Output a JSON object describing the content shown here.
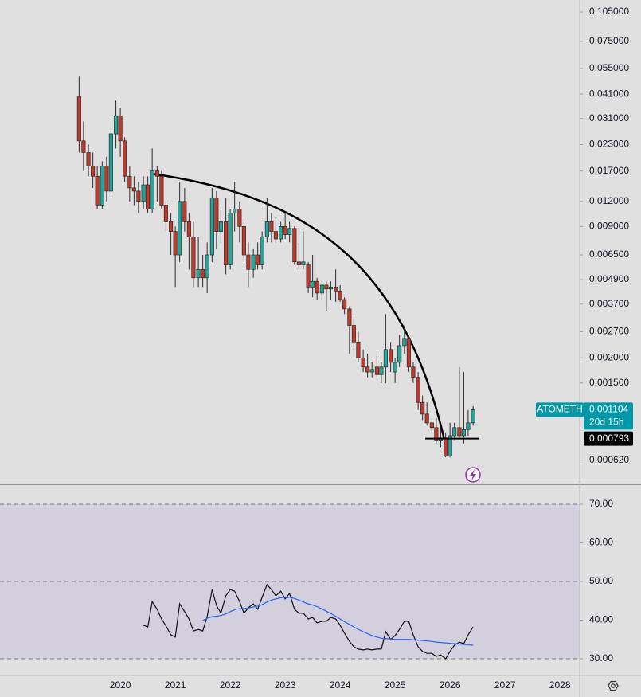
{
  "chart_data": [
    {
      "type": "candlestick",
      "symbol": "ATOMETH",
      "countdown": "20d 15h",
      "log_scale": true,
      "up_color": "#26a69a",
      "down_color": "#c0392b",
      "x": [
        2019.25,
        2019.33,
        2019.42,
        2019.5,
        2019.58,
        2019.67,
        2019.75,
        2019.83,
        2019.92,
        2020,
        2020.08,
        2020.17,
        2020.25,
        2020.33,
        2020.42,
        2020.5,
        2020.58,
        2020.67,
        2020.75,
        2020.83,
        2020.92,
        2021,
        2021.08,
        2021.17,
        2021.25,
        2021.33,
        2021.42,
        2021.5,
        2021.58,
        2021.67,
        2021.75,
        2021.83,
        2021.92,
        2022,
        2022.08,
        2022.17,
        2022.25,
        2022.33,
        2022.42,
        2022.5,
        2022.58,
        2022.67,
        2022.75,
        2022.83,
        2022.92,
        2023,
        2023.08,
        2023.17,
        2023.25,
        2023.33,
        2023.42,
        2023.5,
        2023.58,
        2023.67,
        2023.75,
        2023.83,
        2023.92,
        2024,
        2024.08,
        2024.17,
        2024.25,
        2024.33,
        2024.42,
        2024.5,
        2024.58,
        2024.67,
        2024.75,
        2024.83,
        2024.92,
        2025,
        2025.08,
        2025.17,
        2025.25,
        2025.33,
        2025.42,
        2025.5,
        2025.58,
        2025.67,
        2025.75,
        2025.83,
        2025.92,
        2026,
        2026.08,
        2026.17,
        2026.25,
        2026.33,
        2026.42
      ],
      "open": [
        0.04,
        0.024,
        0.021,
        0.018,
        0.016,
        0.0115,
        0.018,
        0.0135,
        0.026,
        0.032,
        0.024,
        0.016,
        0.014,
        0.0135,
        0.012,
        0.0145,
        0.011,
        0.017,
        0.016,
        0.0115,
        0.0095,
        0.0085,
        0.0065,
        0.012,
        0.0095,
        0.008,
        0.005,
        0.0055,
        0.005,
        0.0065,
        0.0125,
        0.0085,
        0.0095,
        0.0058,
        0.0105,
        0.011,
        0.009,
        0.0065,
        0.0055,
        0.0065,
        0.0058,
        0.008,
        0.0095,
        0.0085,
        0.0078,
        0.009,
        0.0082,
        0.0088,
        0.006,
        0.0058,
        0.0058,
        0.0045,
        0.0048,
        0.0042,
        0.0046,
        0.0044,
        0.0045,
        0.0043,
        0.0039,
        0.0035,
        0.0029,
        0.0024,
        0.002,
        0.0018,
        0.0017,
        0.0018,
        0.00165,
        0.0018,
        0.0022,
        0.0017,
        0.0019,
        0.0023,
        0.0025,
        0.0018,
        0.0016,
        0.0012,
        0.00105,
        0.00095,
        0.0009,
        0.00078,
        0.0008,
        0.00065,
        0.00082,
        0.0009,
        0.00082,
        0.00088,
        0.00095
      ],
      "high": [
        0.05,
        0.03,
        0.023,
        0.021,
        0.018,
        0.019,
        0.02,
        0.027,
        0.038,
        0.035,
        0.025,
        0.018,
        0.016,
        0.015,
        0.016,
        0.016,
        0.022,
        0.018,
        0.017,
        0.012,
        0.0105,
        0.009,
        0.015,
        0.014,
        0.0105,
        0.0095,
        0.008,
        0.0065,
        0.0075,
        0.014,
        0.0135,
        0.011,
        0.0125,
        0.011,
        0.015,
        0.012,
        0.0095,
        0.0075,
        0.007,
        0.0075,
        0.0085,
        0.0125,
        0.0105,
        0.01,
        0.0095,
        0.0105,
        0.0095,
        0.009,
        0.0075,
        0.0085,
        0.006,
        0.0065,
        0.005,
        0.0048,
        0.0048,
        0.0048,
        0.0055,
        0.0046,
        0.004,
        0.0036,
        0.0032,
        0.0027,
        0.0022,
        0.0021,
        0.0019,
        0.0021,
        0.0019,
        0.0033,
        0.0024,
        0.002,
        0.0026,
        0.0029,
        0.0026,
        0.0019,
        0.0017,
        0.0013,
        0.0012,
        0.001,
        0.001,
        0.0009,
        0.00085,
        0.00095,
        0.00095,
        0.0018,
        0.0017,
        0.0011,
        0.00115
      ],
      "low": [
        0.021,
        0.017,
        0.016,
        0.014,
        0.011,
        0.011,
        0.012,
        0.013,
        0.022,
        0.02,
        0.015,
        0.012,
        0.0115,
        0.0105,
        0.011,
        0.0105,
        0.0105,
        0.012,
        0.011,
        0.0085,
        0.0065,
        0.0045,
        0.006,
        0.0085,
        0.0055,
        0.0045,
        0.0045,
        0.0045,
        0.0042,
        0.006,
        0.007,
        0.0075,
        0.0052,
        0.0055,
        0.0085,
        0.0075,
        0.006,
        0.0045,
        0.005,
        0.0055,
        0.0055,
        0.0075,
        0.0075,
        0.0075,
        0.0075,
        0.0078,
        0.0075,
        0.0058,
        0.0055,
        0.0055,
        0.0042,
        0.004,
        0.0039,
        0.0039,
        0.0034,
        0.0039,
        0.0038,
        0.0038,
        0.0033,
        0.0021,
        0.0022,
        0.0019,
        0.0017,
        0.0016,
        0.0016,
        0.0016,
        0.0015,
        0.0015,
        0.0017,
        0.0015,
        0.0018,
        0.0021,
        0.0017,
        0.0015,
        0.0011,
        0.00098,
        0.00092,
        0.00085,
        0.00075,
        0.00072,
        0.00064,
        0.00064,
        0.00078,
        0.0008,
        0.00075,
        0.00082,
        0.00092
      ],
      "close": [
        0.024,
        0.021,
        0.018,
        0.016,
        0.0115,
        0.018,
        0.0135,
        0.026,
        0.032,
        0.024,
        0.016,
        0.014,
        0.0135,
        0.012,
        0.0145,
        0.011,
        0.017,
        0.016,
        0.0115,
        0.0095,
        0.0085,
        0.0065,
        0.012,
        0.0095,
        0.008,
        0.005,
        0.0055,
        0.005,
        0.0065,
        0.0125,
        0.0085,
        0.0095,
        0.0058,
        0.0105,
        0.011,
        0.009,
        0.0065,
        0.0055,
        0.0065,
        0.0058,
        0.008,
        0.0095,
        0.0085,
        0.0078,
        0.009,
        0.0082,
        0.0088,
        0.006,
        0.0058,
        0.006,
        0.0045,
        0.0048,
        0.0042,
        0.0046,
        0.0044,
        0.0045,
        0.0043,
        0.0039,
        0.0035,
        0.0029,
        0.0024,
        0.002,
        0.0018,
        0.0017,
        0.00175,
        0.00165,
        0.0018,
        0.0022,
        0.0019,
        0.0019,
        0.0023,
        0.0025,
        0.0018,
        0.0016,
        0.0012,
        0.00105,
        0.00095,
        0.0009,
        0.00078,
        0.0008,
        0.00065,
        0.00082,
        0.0009,
        0.00082,
        0.00088,
        0.00095,
        0.001104
      ],
      "hline": 0.000793,
      "xlim": [
        2017.81,
        2028.36
      ],
      "xticks": [
        2020,
        2021,
        2022,
        2023,
        2024,
        2025,
        2026,
        2027,
        2028
      ],
      "ylim": [
        0.00047,
        0.1204
      ],
      "yticks": [
        {
          "value": 0.105,
          "label": "0.105000"
        },
        {
          "value": 0.075,
          "label": "0.075000"
        },
        {
          "value": 0.055,
          "label": "0.055000"
        },
        {
          "value": 0.041,
          "label": "0.041000"
        },
        {
          "value": 0.031,
          "label": "0.031000"
        },
        {
          "value": 0.023,
          "label": "0.023000"
        },
        {
          "value": 0.017,
          "label": "0.017000"
        },
        {
          "value": 0.012,
          "label": "0.012000"
        },
        {
          "value": 0.009,
          "label": "0.009000"
        },
        {
          "value": 0.0065,
          "label": "0.006500"
        },
        {
          "value": 0.0049,
          "label": "0.004900"
        },
        {
          "value": 0.0037,
          "label": "0.003700"
        },
        {
          "value": 0.0027,
          "label": "0.002700"
        },
        {
          "value": 0.002,
          "label": "0.002000"
        },
        {
          "value": 0.0015,
          "label": "0.001500"
        },
        {
          "value": 0.00062,
          "label": "0.000620"
        }
      ]
    },
    {
      "type": "line",
      "ylim": [
        25.67,
        75.15
      ],
      "yticks": [
        {
          "value": 70,
          "label": "70.00"
        },
        {
          "value": 60,
          "label": "60.00"
        },
        {
          "value": 50,
          "label": "50.00"
        },
        {
          "value": 40,
          "label": "40.00"
        },
        {
          "value": 30,
          "label": "30.00"
        }
      ],
      "levels": [
        70,
        50,
        30
      ],
      "band_color": "#d3cfdc",
      "series": [
        {
          "color": "#111111",
          "values": [
            null,
            null,
            null,
            null,
            null,
            null,
            null,
            null,
            null,
            null,
            null,
            null,
            null,
            null,
            38.7,
            38.2,
            44.8,
            42.8,
            40.3,
            38.5,
            36.2,
            35.6,
            44.2,
            42.2,
            40.3,
            37.2,
            37.6,
            37.2,
            40.9,
            47.9,
            43.8,
            41.8,
            46.3,
            47.9,
            47.5,
            44.8,
            41.8,
            43.2,
            44.2,
            42.8,
            45.9,
            49.2,
            47.9,
            46.3,
            47.5,
            45.5,
            46.9,
            42.8,
            41.8,
            41.8,
            40.3,
            40.7,
            39.3,
            39.7,
            39.7,
            40.7,
            40.3,
            38.7,
            36.6,
            34.5,
            33.1,
            32.5,
            32.3,
            32.5,
            32.3,
            32.5,
            32.5,
            37.0,
            35.0,
            36.0,
            37.6,
            39.7,
            39.7,
            36.2,
            33.1,
            31.9,
            31.4,
            31.4,
            30.6,
            31.0,
            30.0,
            31.9,
            33.5,
            34.3,
            33.9,
            36.2,
            38.2
          ]
        },
        {
          "color": "#2962ff",
          "values": [
            null,
            null,
            null,
            null,
            null,
            null,
            null,
            null,
            null,
            null,
            null,
            null,
            null,
            null,
            null,
            null,
            null,
            null,
            null,
            null,
            null,
            null,
            null,
            null,
            null,
            null,
            null,
            39.9,
            40.5,
            40.9,
            41,
            41.2,
            41.6,
            42.2,
            42.7,
            43,
            43,
            43.1,
            43.4,
            43.6,
            44,
            44.7,
            45.2,
            45.5,
            45.8,
            45.9,
            45.9,
            45.6,
            45.2,
            44.7,
            44.2,
            43.9,
            43.5,
            42.9,
            42.3,
            41.7,
            41,
            40.3,
            39.6,
            38.9,
            38.2,
            37.6,
            37,
            36.5,
            36,
            35.6,
            35.3,
            35.2,
            35.1,
            35,
            35,
            35,
            35,
            34.9,
            34.8,
            34.7,
            34.6,
            34.5,
            34.3,
            34.2,
            34.1,
            34,
            33.9,
            33.8,
            33.7,
            33.6,
            33.5
          ]
        }
      ]
    }
  ]
}
